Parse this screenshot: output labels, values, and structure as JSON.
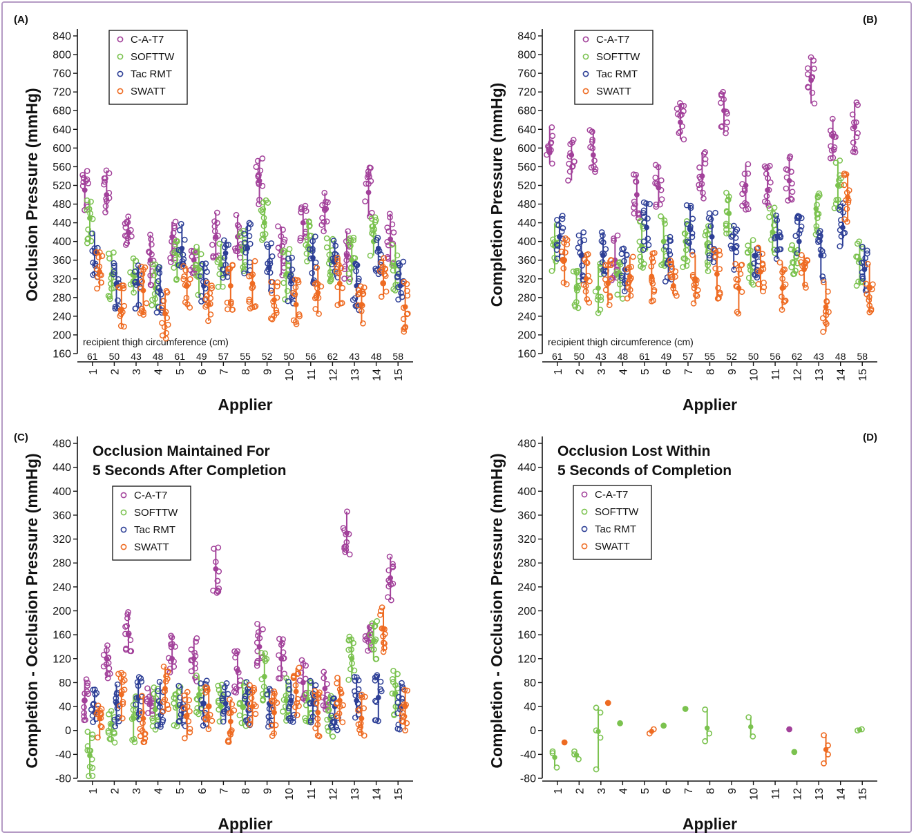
{
  "colors": {
    "C-A-T7": "#a2419a",
    "SOFTTW": "#7bc24f",
    "Tac RMT": "#2d3f96",
    "SWATT": "#ee6b22",
    "frame": "#b49ac4"
  },
  "legend_entries": [
    "C-A-T7",
    "SOFTTW",
    "Tac RMT",
    "SWATT"
  ],
  "thigh_circumference": {
    "label": "recipient thigh circumference (cm)",
    "values": [
      "61",
      "50",
      "43",
      "48",
      "61",
      "49",
      "57",
      "55",
      "52",
      "50",
      "56",
      "62",
      "43",
      "48",
      "58"
    ]
  },
  "chart_data": [
    {
      "panel": "(A)",
      "type": "scatter",
      "xlabel": "Applier",
      "ylabel": "Occlusion Pressure (mmHg)",
      "ylim": [
        160,
        840
      ],
      "yticks": [
        160,
        200,
        240,
        280,
        320,
        360,
        400,
        440,
        480,
        520,
        560,
        600,
        640,
        680,
        720,
        760,
        800,
        840
      ],
      "categories": [
        "1",
        "2",
        "3",
        "4",
        "5",
        "6",
        "7",
        "8",
        "9",
        "10",
        "11",
        "12",
        "13",
        "14",
        "15"
      ],
      "legend_position": "top-left",
      "series": [
        {
          "name": "C-A-T7",
          "values": [
            510,
            500,
            420,
            360,
            410,
            360,
            410,
            410,
            530,
            380,
            440,
            470,
            370,
            505,
            405
          ]
        },
        {
          "name": "SOFTTW",
          "values": [
            450,
            330,
            330,
            300,
            350,
            340,
            350,
            380,
            440,
            330,
            390,
            360,
            360,
            400,
            350
          ]
        },
        {
          "name": "Tac RMT",
          "values": [
            375,
            310,
            310,
            295,
            385,
            305,
            375,
            385,
            345,
            315,
            365,
            355,
            305,
            385,
            305
          ]
        },
        {
          "name": "SWATT",
          "values": [
            335,
            255,
            295,
            245,
            305,
            265,
            305,
            310,
            275,
            265,
            290,
            310,
            265,
            310,
            260
          ]
        }
      ]
    },
    {
      "panel": "(B)",
      "type": "scatter",
      "xlabel": "Applier",
      "ylabel": "Completion Pressure (mmHg)",
      "ylim": [
        160,
        840
      ],
      "yticks": [
        160,
        200,
        240,
        280,
        320,
        360,
        400,
        440,
        480,
        520,
        560,
        600,
        640,
        680,
        720,
        760,
        800,
        840
      ],
      "categories": [
        "1",
        "2",
        "3",
        "4",
        "5",
        "6",
        "7",
        "8",
        "9",
        "10",
        "11",
        "12",
        "13",
        "14",
        "15"
      ],
      "legend_position": "top-left",
      "series": [
        {
          "name": "C-A-T7",
          "values": [
            590,
            585,
            585,
            360,
            500,
            515,
            655,
            540,
            680,
            520,
            510,
            530,
            745,
            625,
            645
          ]
        },
        {
          "name": "SOFTTW",
          "values": [
            390,
            300,
            300,
            330,
            390,
            400,
            400,
            390,
            460,
            350,
            420,
            380,
            470,
            520,
            360
          ]
        },
        {
          "name": "Tac RMT",
          "values": [
            410,
            370,
            370,
            340,
            430,
            360,
            425,
            410,
            385,
            370,
            410,
            400,
            370,
            430,
            340
          ]
        },
        {
          "name": "SWATT",
          "values": [
            360,
            320,
            310,
            325,
            325,
            305,
            320,
            330,
            300,
            335,
            300,
            340,
            260,
            495,
            300
          ]
        }
      ]
    },
    {
      "panel": "(C)",
      "type": "scatter",
      "xlabel": "Applier",
      "ylabel": "Completion - Occlusion Pressure (mmHg)",
      "annotation": [
        "Occlusion Maintained For",
        "5 Seconds After Completion"
      ],
      "ylim": [
        -80,
        480
      ],
      "yticks": [
        -80,
        -40,
        0,
        40,
        80,
        120,
        160,
        200,
        240,
        280,
        320,
        360,
        400,
        440,
        480
      ],
      "categories": [
        "1",
        "2",
        "3",
        "4",
        "5",
        "6",
        "7",
        "8",
        "9",
        "10",
        "11",
        "12",
        "13",
        "14",
        "15"
      ],
      "legend_position": "top-left",
      "series": [
        {
          "name": "C-A-T7",
          "values": [
            50,
            120,
            160,
            45,
            120,
            120,
            270,
            100,
            140,
            120,
            80,
            70,
            330,
            160,
            255
          ]
        },
        {
          "name": "SOFTTW",
          "values": [
            -42,
            10,
            20,
            35,
            40,
            60,
            40,
            40,
            90,
            50,
            50,
            20,
            120,
            150,
            60
          ]
        },
        {
          "name": "Tac RMT",
          "values": [
            30,
            45,
            55,
            45,
            40,
            45,
            45,
            45,
            45,
            50,
            45,
            40,
            50,
            55,
            40
          ]
        },
        {
          "name": "SWATT",
          "values": [
            20,
            60,
            20,
            70,
            25,
            40,
            15,
            40,
            30,
            65,
            30,
            50,
            20,
            170,
            40
          ]
        }
      ]
    },
    {
      "panel": "(D)",
      "type": "scatter",
      "xlabel": "Applier",
      "ylabel": "Completion - Occlusion Pressure (mmHg)",
      "annotation": [
        "Occlusion Lost Within",
        "5 Seconds of Completion"
      ],
      "ylim": [
        -80,
        480
      ],
      "yticks": [
        -80,
        -40,
        0,
        40,
        80,
        120,
        160,
        200,
        240,
        280,
        320,
        360,
        400,
        440,
        480
      ],
      "categories": [
        "1",
        "2",
        "3",
        "4",
        "5",
        "6",
        "7",
        "8",
        "9",
        "10",
        "11",
        "12",
        "13",
        "14",
        "15"
      ],
      "legend_position": "top-left",
      "series": [
        {
          "name": "C-A-T7",
          "points": [
            [
              12,
              2
            ]
          ]
        },
        {
          "name": "SOFTTW",
          "points": [
            [
              1,
              -38
            ],
            [
              1,
              -62
            ],
            [
              1,
              -35
            ],
            [
              2,
              -40
            ],
            [
              2,
              -48
            ],
            [
              2,
              -35
            ],
            [
              3,
              38
            ],
            [
              3,
              30
            ],
            [
              3,
              0
            ],
            [
              3,
              -12
            ],
            [
              3,
              -65
            ],
            [
              4,
              12
            ],
            [
              6,
              8
            ],
            [
              7,
              36
            ],
            [
              8,
              35
            ],
            [
              8,
              -5
            ],
            [
              8,
              -18
            ],
            [
              10,
              22
            ],
            [
              10,
              -10
            ],
            [
              12,
              -36
            ],
            [
              15,
              0
            ],
            [
              15,
              2
            ]
          ]
        },
        {
          "name": "Tac RMT",
          "points": []
        },
        {
          "name": "SWATT",
          "points": [
            [
              1,
              -20
            ],
            [
              3,
              46
            ],
            [
              5,
              -5
            ],
            [
              5,
              2
            ],
            [
              13,
              -8
            ],
            [
              13,
              -40
            ],
            [
              13,
              -55
            ],
            [
              13,
              -25
            ]
          ]
        }
      ]
    }
  ]
}
